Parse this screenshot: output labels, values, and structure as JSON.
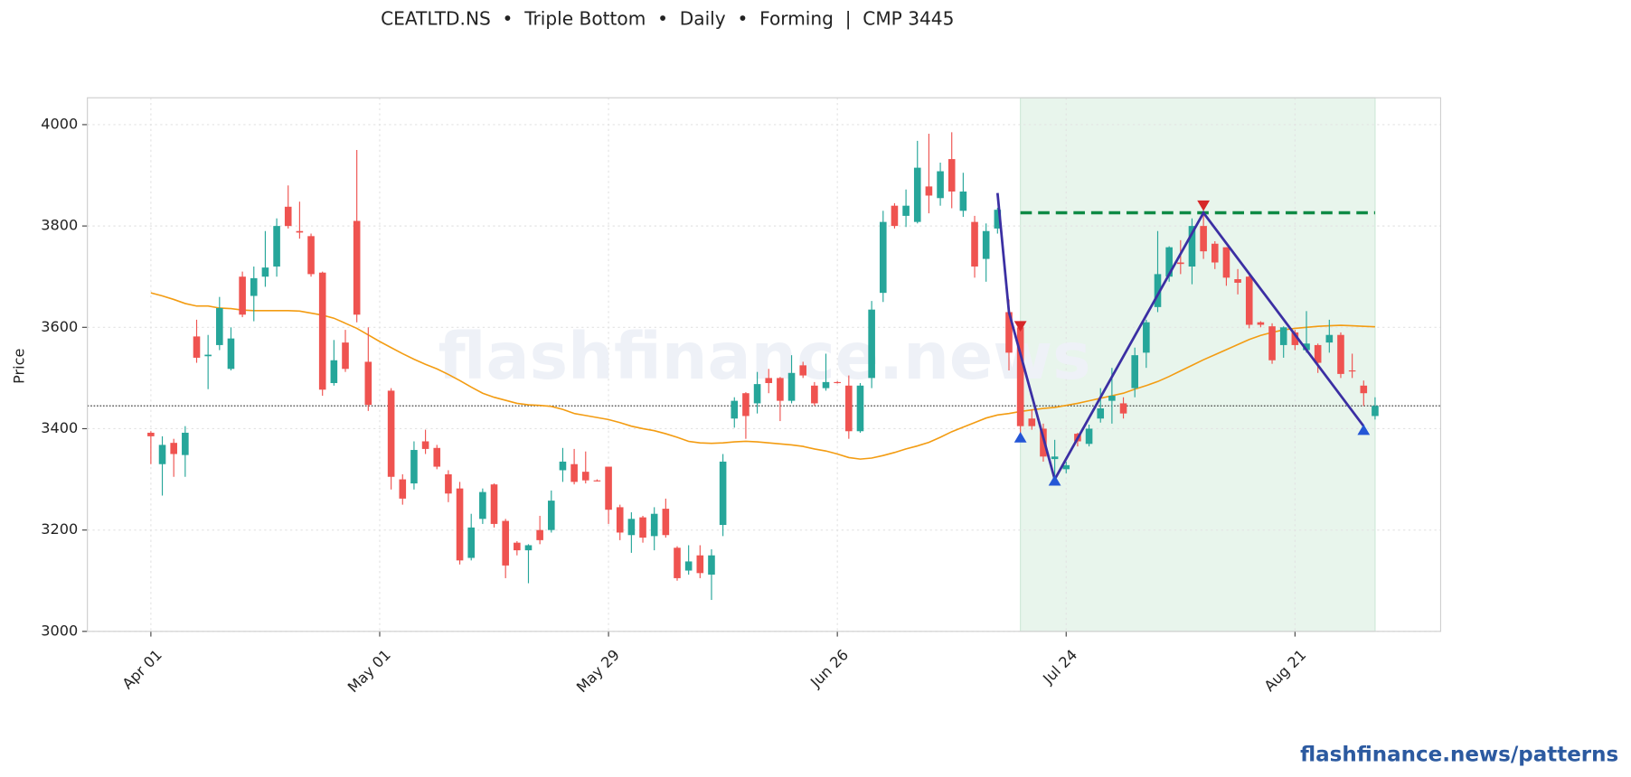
{
  "chart_data": {
    "type": "candlestick",
    "title": "CEATLTD.NS  •  Triple Bottom  •  Daily  •  Forming  |  CMP 3445",
    "y_label": "Price",
    "watermark": "flashfinance.news",
    "footer": "flashfinance.news/patterns",
    "categories": [
      "Apr 01",
      null,
      null,
      null,
      null,
      null,
      null,
      null,
      null,
      null,
      null,
      null,
      null,
      null,
      null,
      null,
      null,
      null,
      null,
      null,
      "May 01",
      null,
      null,
      null,
      null,
      null,
      null,
      null,
      null,
      null,
      null,
      null,
      null,
      null,
      null,
      null,
      null,
      null,
      null,
      null,
      "May 29",
      null,
      null,
      null,
      null,
      null,
      null,
      null,
      null,
      null,
      null,
      null,
      null,
      null,
      null,
      null,
      null,
      null,
      null,
      null,
      "Jun 26",
      null,
      null,
      null,
      null,
      null,
      null,
      null,
      null,
      null,
      null,
      null,
      null,
      null,
      null,
      null,
      null,
      null,
      null,
      null,
      "Jul 24",
      null,
      null,
      null,
      null,
      null,
      null,
      null,
      null,
      null,
      null,
      null,
      null,
      null,
      null,
      null,
      null,
      null,
      null,
      null,
      "Aug 21",
      null,
      null,
      null,
      null,
      null,
      null,
      null
    ],
    "open": [
      3392,
      3330,
      3372,
      3348,
      3582,
      3543,
      3565,
      3518,
      3700,
      3662,
      3700,
      3720,
      3838,
      3790,
      3780,
      3708,
      3490,
      3570,
      3810,
      3532,
      null,
      3475,
      3300,
      3292,
      3375,
      3362,
      3310,
      3282,
      3145,
      3222,
      3290,
      3218,
      3175,
      3160,
      3200,
      3200,
      3318,
      3330,
      3315,
      3298,
      3325,
      3245,
      3190,
      3225,
      3188,
      3242,
      3165,
      3120,
      3150,
      3112,
      3210,
      3420,
      3470,
      3450,
      3500,
      3500,
      3455,
      3525,
      3485,
      3480,
      3492,
      3485,
      3395,
      3500,
      3668,
      3840,
      3820,
      3808,
      3878,
      3855,
      3932,
      3830,
      3808,
      3735,
      3795,
      3630,
      3600,
      3420,
      3400,
      3340,
      3320,
      3390,
      3370,
      3420,
      3455,
      3450,
      3480,
      3550,
      3640,
      3700,
      3728,
      3720,
      3800,
      3765,
      3758,
      3695,
      3700,
      3610,
      3602,
      3565,
      3590,
      3555,
      3565,
      3570,
      3585,
      3515,
      3485,
      3425
    ],
    "high": [
      3395,
      3385,
      3380,
      3405,
      3615,
      3585,
      3660,
      3600,
      3710,
      3720,
      3790,
      3815,
      3880,
      3848,
      3785,
      3710,
      3575,
      3595,
      3950,
      3600,
      null,
      3480,
      3310,
      3375,
      3398,
      3368,
      3318,
      3295,
      3232,
      3282,
      3292,
      3222,
      3178,
      3172,
      3228,
      3278,
      3362,
      3360,
      3355,
      3300,
      3325,
      3250,
      3235,
      3228,
      3245,
      3262,
      3168,
      3170,
      3170,
      3162,
      3350,
      3462,
      3472,
      3512,
      3518,
      3502,
      3545,
      3532,
      3492,
      3548,
      3494,
      3505,
      3490,
      3652,
      3830,
      3845,
      3872,
      3968,
      3982,
      3925,
      3985,
      3905,
      3820,
      3805,
      3836,
      3655,
      3605,
      3438,
      3410,
      3378,
      3335,
      3392,
      3408,
      3480,
      3520,
      3462,
      3560,
      3615,
      3790,
      3760,
      3772,
      3815,
      3830,
      3770,
      3758,
      3715,
      3702,
      3612,
      3608,
      3602,
      3595,
      3632,
      3568,
      3615,
      3590,
      3548,
      3495,
      3462
    ],
    "low": [
      3330,
      3268,
      3305,
      3305,
      3530,
      3478,
      3555,
      3515,
      3620,
      3612,
      3680,
      3700,
      3795,
      3775,
      3700,
      3465,
      3485,
      3512,
      3610,
      3435,
      null,
      3280,
      3250,
      3280,
      3350,
      3320,
      3255,
      3132,
      3140,
      3212,
      3205,
      3105,
      3150,
      3095,
      3172,
      3195,
      3295,
      3290,
      3292,
      3296,
      3212,
      3180,
      3155,
      3175,
      3160,
      3185,
      3100,
      3112,
      3105,
      3062,
      3188,
      3402,
      3380,
      3430,
      3470,
      3415,
      3450,
      3500,
      3445,
      3475,
      3489,
      3380,
      3392,
      3480,
      3650,
      3795,
      3798,
      3805,
      3825,
      3840,
      3835,
      3818,
      3698,
      3690,
      3785,
      3515,
      3385,
      3398,
      3335,
      3295,
      3312,
      3365,
      3365,
      3412,
      3410,
      3420,
      3462,
      3520,
      3630,
      3690,
      3705,
      3685,
      3735,
      3715,
      3682,
      3665,
      3598,
      3600,
      3528,
      3540,
      3555,
      3550,
      3510,
      3550,
      3500,
      3500,
      3445,
      3418
    ],
    "close": [
      3385,
      3368,
      3350,
      3392,
      3540,
      3546,
      3638,
      3578,
      3625,
      3697,
      3718,
      3800,
      3800,
      3787,
      3705,
      3477,
      3535,
      3518,
      3625,
      3447,
      null,
      3305,
      3262,
      3358,
      3360,
      3325,
      3272,
      3140,
      3205,
      3275,
      3212,
      3130,
      3160,
      3170,
      3180,
      3258,
      3335,
      3295,
      3298,
      3297,
      3240,
      3195,
      3222,
      3185,
      3232,
      3190,
      3105,
      3138,
      3115,
      3150,
      3335,
      3455,
      3425,
      3488,
      3490,
      3455,
      3510,
      3505,
      3450,
      3492,
      3491,
      3395,
      3485,
      3635,
      3808,
      3800,
      3840,
      3915,
      3860,
      3908,
      3868,
      3868,
      3720,
      3790,
      3832,
      3550,
      3405,
      3405,
      3345,
      3345,
      3328,
      3375,
      3400,
      3440,
      3465,
      3430,
      3545,
      3610,
      3705,
      3758,
      3725,
      3800,
      3750,
      3728,
      3698,
      3688,
      3605,
      3605,
      3535,
      3600,
      3565,
      3568,
      3530,
      3585,
      3508,
      3513,
      3470,
      3445
    ],
    "up_color": "#26a69a",
    "down_color": "#ef5350",
    "ma": {
      "color": "#f39c12",
      "values": [
        3668,
        3662,
        3655,
        3647,
        3642,
        3642,
        3638,
        3637,
        3634,
        3633,
        3633,
        3633,
        3633,
        3632,
        3628,
        3624,
        3618,
        3608,
        3598,
        3585,
        3572,
        3560,
        3548,
        3537,
        3527,
        3518,
        3507,
        3495,
        3482,
        3470,
        3462,
        3456,
        3450,
        3447,
        3446,
        3444,
        3438,
        3430,
        3426,
        3422,
        3418,
        3412,
        3405,
        3400,
        3396,
        3390,
        3383,
        3375,
        3372,
        3371,
        3372,
        3374,
        3375,
        3374,
        3372,
        3370,
        3368,
        3365,
        3360,
        3356,
        3350,
        3343,
        3340,
        3342,
        3347,
        3353,
        3360,
        3366,
        3373,
        3383,
        3394,
        3403,
        3412,
        3421,
        3427,
        3430,
        3434,
        3437,
        3440,
        3442,
        3446,
        3450,
        3455,
        3460,
        3465,
        3470,
        3478,
        3485,
        3493,
        3503,
        3514,
        3525,
        3536,
        3546,
        3556,
        3566,
        3576,
        3584,
        3590,
        3595,
        3598,
        3600,
        3602,
        3603,
        3604,
        3603,
        3602,
        3601
      ]
    },
    "cmp": 3445,
    "zone": {
      "x": [
        76,
        107
      ],
      "color": "#e8f5ec"
    },
    "level": {
      "value": 3826,
      "x": [
        76,
        107
      ],
      "color": "#0e8a45"
    },
    "pattern_line": {
      "color": "#3b2fa3",
      "x": [
        74,
        75,
        79,
        92,
        106
      ],
      "y": [
        3865,
        3630,
        3300,
        3826,
        3405
      ]
    },
    "markers": [
      {
        "x": 76,
        "y": 3600,
        "kind": "down",
        "color": "#d62728"
      },
      {
        "x": 76,
        "y": 3385,
        "kind": "up",
        "color": "#2456d6"
      },
      {
        "x": 79,
        "y": 3300,
        "kind": "up",
        "color": "#2456d6"
      },
      {
        "x": 92,
        "y": 3838,
        "kind": "down",
        "color": "#d62728"
      },
      {
        "x": 106,
        "y": 3400,
        "kind": "up",
        "color": "#2456d6"
      }
    ],
    "xlim": [
      -5.55,
      112.73
    ],
    "ylim": [
      3000,
      4053
    ],
    "yticks": [
      3000,
      3200,
      3400,
      3600,
      3800,
      4000
    ],
    "grid": true
  }
}
